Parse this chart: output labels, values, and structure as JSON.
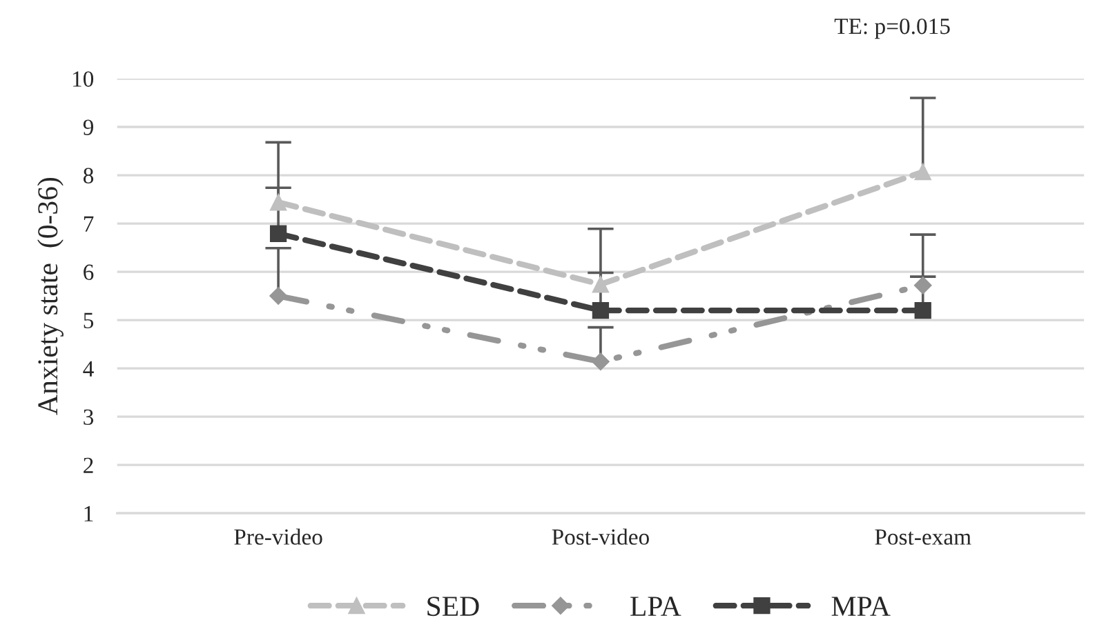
{
  "chart_data": {
    "type": "line",
    "categories": [
      "Pre-video",
      "Post-video",
      "Post-exam"
    ],
    "ylabel": "Anxiety state  (0-36)",
    "ylim": [
      1,
      10
    ],
    "yticks": [
      1,
      2,
      3,
      4,
      5,
      6,
      7,
      8,
      9,
      10
    ],
    "grid": "y",
    "legend": "bottom",
    "annotations": [
      "TE: p=0.015"
    ],
    "series": [
      {
        "name": "SED",
        "color": "#bfbfbf",
        "marker": "triangle",
        "line_style": "dashed",
        "values": [
          7.44,
          5.74,
          8.07
        ],
        "errors": [
          [
            7.44,
            8.68
          ],
          [
            5.74,
            6.89
          ],
          [
            8.07,
            9.6
          ]
        ]
      },
      {
        "name": "LPA",
        "color": "#969696",
        "marker": "diamond",
        "line_style": "dashdotdot",
        "values": [
          5.5,
          4.14,
          5.72
        ],
        "errors": [
          [
            5.5,
            6.49
          ],
          [
            4.14,
            4.85
          ],
          [
            5.72,
            6.77
          ]
        ]
      },
      {
        "name": "MPA",
        "color": "#404040",
        "marker": "square",
        "line_style": "dashed",
        "values": [
          6.79,
          5.2,
          5.2
        ],
        "errors": [
          [
            6.79,
            7.74
          ],
          [
            5.2,
            5.98
          ],
          [
            5.2,
            5.9
          ]
        ]
      }
    ]
  }
}
